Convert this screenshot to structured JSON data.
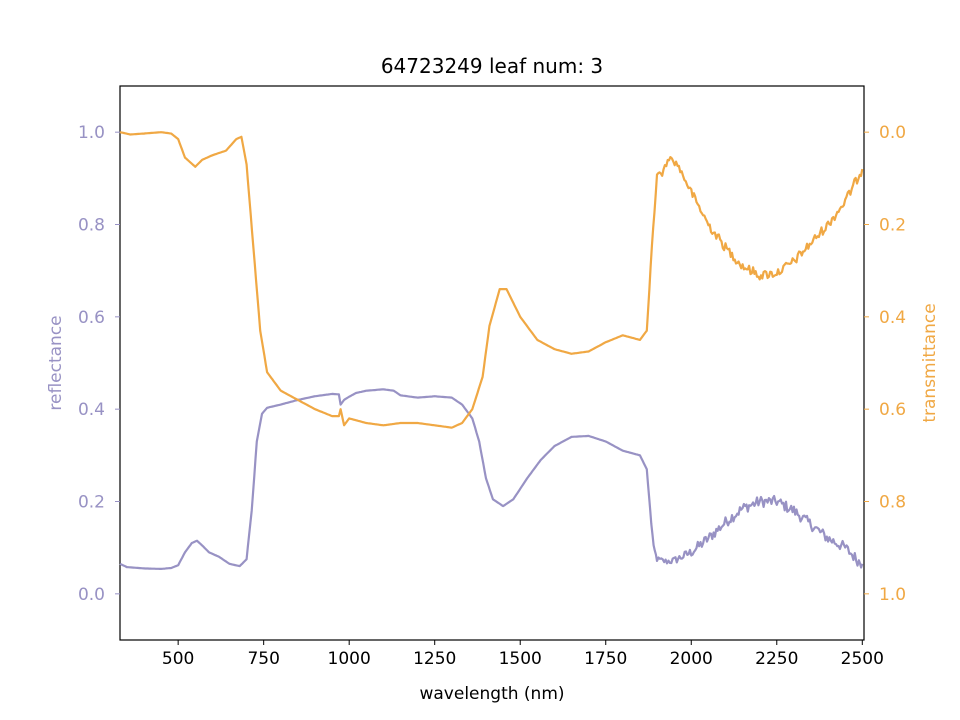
{
  "chart_data": {
    "type": "line",
    "title": "64723249 leaf num: 3",
    "xlabel": "wavelength (nm)",
    "xlim": [
      330,
      2505
    ],
    "xticks": [
      500,
      750,
      1000,
      1250,
      1500,
      1750,
      2000,
      2250,
      2500
    ],
    "y_left": {
      "label": "reflectance",
      "color": "#9892c4",
      "lim": [
        -0.1,
        1.1
      ],
      "ticks": [
        0.0,
        0.2,
        0.4,
        0.6,
        0.8,
        1.0
      ],
      "tick_labels": [
        "0.0",
        "0.2",
        "0.4",
        "0.6",
        "0.8",
        "1.0"
      ]
    },
    "y_right": {
      "label": "transmittance",
      "color": "#f0a844",
      "lim": [
        1.1,
        -0.1
      ],
      "inverted": true,
      "ticks": [
        0.0,
        0.2,
        0.4,
        0.6,
        0.8,
        1.0
      ],
      "tick_labels": [
        "0.0",
        "0.2",
        "0.4",
        "0.6",
        "0.8",
        "1.0"
      ]
    },
    "series": [
      {
        "axis": "left",
        "color": "#9892c4",
        "noisy": [
          [
            1880,
            2500,
            0.012
          ]
        ],
        "points": [
          [
            330,
            0.065
          ],
          [
            350,
            0.058
          ],
          [
            400,
            0.055
          ],
          [
            450,
            0.054
          ],
          [
            480,
            0.056
          ],
          [
            500,
            0.062
          ],
          [
            520,
            0.09
          ],
          [
            540,
            0.11
          ],
          [
            555,
            0.115
          ],
          [
            570,
            0.105
          ],
          [
            590,
            0.09
          ],
          [
            620,
            0.08
          ],
          [
            650,
            0.065
          ],
          [
            680,
            0.06
          ],
          [
            700,
            0.075
          ],
          [
            715,
            0.18
          ],
          [
            730,
            0.33
          ],
          [
            745,
            0.39
          ],
          [
            760,
            0.403
          ],
          [
            800,
            0.41
          ],
          [
            850,
            0.42
          ],
          [
            900,
            0.428
          ],
          [
            950,
            0.433
          ],
          [
            970,
            0.432
          ],
          [
            975,
            0.41
          ],
          [
            985,
            0.42
          ],
          [
            1000,
            0.427
          ],
          [
            1020,
            0.435
          ],
          [
            1050,
            0.44
          ],
          [
            1100,
            0.443
          ],
          [
            1130,
            0.44
          ],
          [
            1150,
            0.43
          ],
          [
            1200,
            0.425
          ],
          [
            1250,
            0.428
          ],
          [
            1300,
            0.425
          ],
          [
            1330,
            0.41
          ],
          [
            1360,
            0.38
          ],
          [
            1380,
            0.33
          ],
          [
            1400,
            0.25
          ],
          [
            1420,
            0.205
          ],
          [
            1450,
            0.19
          ],
          [
            1480,
            0.205
          ],
          [
            1520,
            0.25
          ],
          [
            1560,
            0.29
          ],
          [
            1600,
            0.32
          ],
          [
            1650,
            0.34
          ],
          [
            1700,
            0.342
          ],
          [
            1750,
            0.33
          ],
          [
            1800,
            0.31
          ],
          [
            1850,
            0.3
          ],
          [
            1870,
            0.27
          ],
          [
            1880,
            0.18
          ],
          [
            1890,
            0.1
          ],
          [
            1900,
            0.075
          ],
          [
            1925,
            0.07
          ],
          [
            1950,
            0.072
          ],
          [
            2000,
            0.09
          ],
          [
            2050,
            0.12
          ],
          [
            2100,
            0.155
          ],
          [
            2150,
            0.185
          ],
          [
            2200,
            0.2
          ],
          [
            2250,
            0.2
          ],
          [
            2300,
            0.18
          ],
          [
            2350,
            0.15
          ],
          [
            2400,
            0.12
          ],
          [
            2450,
            0.1
          ],
          [
            2490,
            0.07
          ],
          [
            2500,
            0.065
          ]
        ]
      },
      {
        "axis": "right",
        "color": "#f0a844",
        "noisy": [
          [
            1880,
            2500,
            0.01
          ]
        ],
        "points": [
          [
            330,
            0.0
          ],
          [
            360,
            0.005
          ],
          [
            400,
            0.003
          ],
          [
            450,
            0.0
          ],
          [
            480,
            0.003
          ],
          [
            500,
            0.015
          ],
          [
            520,
            0.055
          ],
          [
            550,
            0.075
          ],
          [
            570,
            0.06
          ],
          [
            600,
            0.05
          ],
          [
            640,
            0.04
          ],
          [
            670,
            0.015
          ],
          [
            685,
            0.01
          ],
          [
            700,
            0.07
          ],
          [
            720,
            0.25
          ],
          [
            740,
            0.43
          ],
          [
            760,
            0.52
          ],
          [
            800,
            0.56
          ],
          [
            850,
            0.58
          ],
          [
            900,
            0.6
          ],
          [
            950,
            0.615
          ],
          [
            970,
            0.615
          ],
          [
            975,
            0.6
          ],
          [
            985,
            0.635
          ],
          [
            1000,
            0.62
          ],
          [
            1050,
            0.63
          ],
          [
            1100,
            0.635
          ],
          [
            1150,
            0.63
          ],
          [
            1200,
            0.63
          ],
          [
            1250,
            0.635
          ],
          [
            1300,
            0.64
          ],
          [
            1330,
            0.63
          ],
          [
            1360,
            0.6
          ],
          [
            1390,
            0.53
          ],
          [
            1410,
            0.42
          ],
          [
            1440,
            0.34
          ],
          [
            1460,
            0.34
          ],
          [
            1500,
            0.4
          ],
          [
            1550,
            0.45
          ],
          [
            1600,
            0.47
          ],
          [
            1650,
            0.48
          ],
          [
            1700,
            0.475
          ],
          [
            1750,
            0.455
          ],
          [
            1800,
            0.44
          ],
          [
            1850,
            0.45
          ],
          [
            1870,
            0.43
          ],
          [
            1885,
            0.25
          ],
          [
            1900,
            0.09
          ],
          [
            1915,
            0.09
          ],
          [
            1935,
            0.055
          ],
          [
            1960,
            0.07
          ],
          [
            2000,
            0.13
          ],
          [
            2050,
            0.2
          ],
          [
            2100,
            0.25
          ],
          [
            2150,
            0.29
          ],
          [
            2200,
            0.31
          ],
          [
            2250,
            0.305
          ],
          [
            2300,
            0.28
          ],
          [
            2350,
            0.24
          ],
          [
            2400,
            0.2
          ],
          [
            2450,
            0.15
          ],
          [
            2500,
            0.08
          ]
        ]
      }
    ]
  }
}
